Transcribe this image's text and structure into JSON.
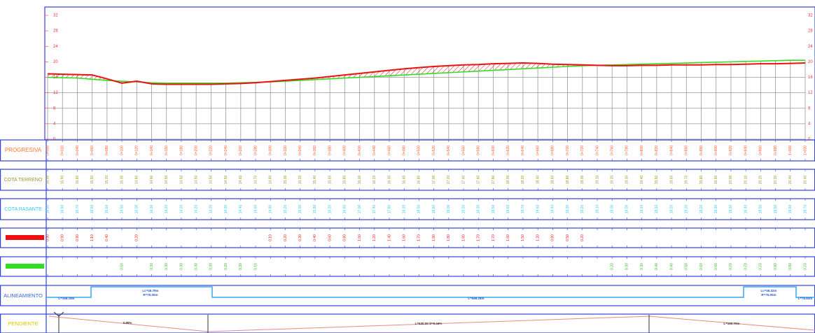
{
  "chart_data": {
    "type": "line",
    "categories": [
      "0+000",
      "0+020",
      "0+040",
      "0+060",
      "0+080",
      "0+100",
      "0+120",
      "0+140",
      "0+160",
      "0+180",
      "0+200",
      "0+220",
      "0+240",
      "0+260",
      "0+280",
      "0+300",
      "0+320",
      "0+340",
      "0+360",
      "0+380",
      "0+400",
      "0+420",
      "0+440",
      "0+460",
      "0+480",
      "0+500",
      "0+520",
      "0+540",
      "0+560",
      "0+580",
      "0+600",
      "0+620",
      "0+640",
      "0+660",
      "0+680",
      "0+700",
      "0+720",
      "0+740",
      "0+760",
      "0+780",
      "0+800",
      "0+820",
      "0+840",
      "0+860",
      "0+880",
      "0+900",
      "0+920",
      "0+940",
      "0+960",
      "0+980",
      "1+000",
      "1+020"
    ],
    "ylim": [
      0,
      32
    ],
    "yticks": [
      0,
      4,
      8,
      12,
      16,
      20,
      24,
      28,
      32
    ],
    "grid": true,
    "series": [
      {
        "color": "#33dd22",
        "values": [
          16.0,
          15.9,
          15.8,
          15.5,
          15.2,
          15.0,
          14.8,
          14.6,
          14.5,
          14.5,
          14.5,
          14.5,
          14.5,
          14.6,
          14.7,
          14.8,
          15.0,
          15.2,
          15.4,
          15.6,
          15.8,
          16.0,
          16.2,
          16.4,
          16.6,
          16.8,
          17.0,
          17.2,
          17.4,
          17.6,
          17.8,
          18.0,
          18.2,
          18.4,
          18.6,
          18.8,
          19.0,
          19.1,
          19.2,
          19.3,
          19.4,
          19.5,
          19.6,
          19.7,
          19.8,
          19.9,
          20.0,
          20.1,
          20.2,
          20.3,
          20.4,
          20.4
        ],
        "value_labels": [
          "16.00",
          "15.90",
          "15.80",
          "15.50",
          "15.20",
          "15.00",
          "14.80",
          "14.60",
          "14.50",
          "14.50",
          "14.50",
          "14.50",
          "14.50",
          "14.60",
          "14.70",
          "14.80",
          "15.00",
          "15.20",
          "15.40",
          "15.60",
          "15.80",
          "16.00",
          "16.20",
          "16.40",
          "16.60",
          "16.80",
          "17.00",
          "17.20",
          "17.40",
          "17.60",
          "17.80",
          "18.00",
          "18.20",
          "18.40",
          "18.60",
          "18.80",
          "19.00",
          "19.10",
          "19.20",
          "19.30",
          "19.40",
          "19.50",
          "19.60",
          "19.70",
          "19.80",
          "19.90",
          "20.00",
          "20.10",
          "20.20",
          "20.30",
          "20.40",
          "20.40"
        ]
      },
      {
        "color": "#ee1111",
        "values": [
          16.9,
          16.8,
          16.7,
          16.6,
          15.6,
          14.5,
          15.0,
          14.3,
          14.2,
          14.2,
          14.2,
          14.2,
          14.3,
          14.4,
          14.6,
          14.9,
          15.2,
          15.5,
          15.8,
          16.2,
          16.6,
          17.0,
          17.4,
          17.8,
          18.2,
          18.5,
          18.8,
          19.0,
          19.2,
          19.3,
          19.5,
          19.6,
          19.7,
          19.6,
          19.4,
          19.3,
          19.2,
          19.1,
          19.0,
          19.0,
          19.1,
          19.1,
          19.2,
          19.2,
          19.2,
          19.3,
          19.3,
          19.4,
          19.5,
          19.5,
          19.6,
          19.7
        ],
        "value_labels": [
          "16.90",
          "16.80",
          "16.70",
          "16.60",
          "15.60",
          "14.50",
          "15.00",
          "14.30",
          "14.20",
          "14.20",
          "14.20",
          "14.20",
          "14.30",
          "14.40",
          "14.60",
          "14.90",
          "15.20",
          "15.50",
          "15.80",
          "16.20",
          "16.60",
          "17.00",
          "17.40",
          "17.80",
          "18.20",
          "18.50",
          "18.80",
          "19.00",
          "19.20",
          "19.30",
          "19.50",
          "19.60",
          "19.70",
          "19.60",
          "19.40",
          "19.30",
          "19.20",
          "19.10",
          "19.00",
          "19.00",
          "19.10",
          "19.10",
          "19.20",
          "19.20",
          "19.20",
          "19.30",
          "19.30",
          "19.40",
          "19.50",
          "19.50",
          "19.60",
          "19.70"
        ]
      }
    ]
  },
  "bands": {
    "progresiva_label": "PROGRESIVA",
    "terreno_label": "COTA TERRENO",
    "rasante_label": "COTA RASANTE",
    "corte": [
      "0.90",
      "0.90",
      "0.90",
      "1.10",
      "0.40",
      null,
      "0.20",
      null,
      null,
      null,
      null,
      null,
      null,
      null,
      null,
      "0.10",
      "0.20",
      "0.30",
      "0.40",
      "0.60",
      "0.80",
      "1.00",
      "1.20",
      "1.40",
      "1.60",
      "1.70",
      "1.80",
      "1.80",
      "1.80",
      "1.70",
      "1.70",
      "1.60",
      "1.50",
      "1.20",
      "0.80",
      "0.50",
      "0.20",
      null,
      null,
      null,
      null,
      null,
      null,
      null,
      null,
      null,
      null,
      null,
      null,
      null,
      null,
      null
    ],
    "relleno": [
      null,
      null,
      null,
      null,
      null,
      "0.50",
      null,
      "0.30",
      "0.30",
      "0.30",
      "0.30",
      "0.30",
      "0.20",
      "0.20",
      "0.10",
      null,
      null,
      null,
      null,
      null,
      null,
      null,
      null,
      null,
      null,
      null,
      null,
      null,
      null,
      null,
      null,
      null,
      null,
      null,
      null,
      null,
      null,
      null,
      "0.20",
      "0.30",
      "0.30",
      "0.40",
      "0.40",
      "0.50",
      "0.60",
      "0.60",
      "0.70",
      "0.70",
      "0.70",
      "0.80",
      "0.80",
      "0.70"
    ],
    "alineamiento_label": "ALINEAMIENTO",
    "alineamiento_texts": [
      "L=168.19m",
      "Lc=45.79m",
      "R=75.00m",
      "L=588.28m",
      "Lc=46.32m",
      "R=75.00m",
      "L=76.82m"
    ],
    "pendiente_label": "PENDIENTE",
    "pendiente_texts": [
      "0.85%",
      "L=630.00 S=0.44%",
      "L=160.70m"
    ]
  }
}
